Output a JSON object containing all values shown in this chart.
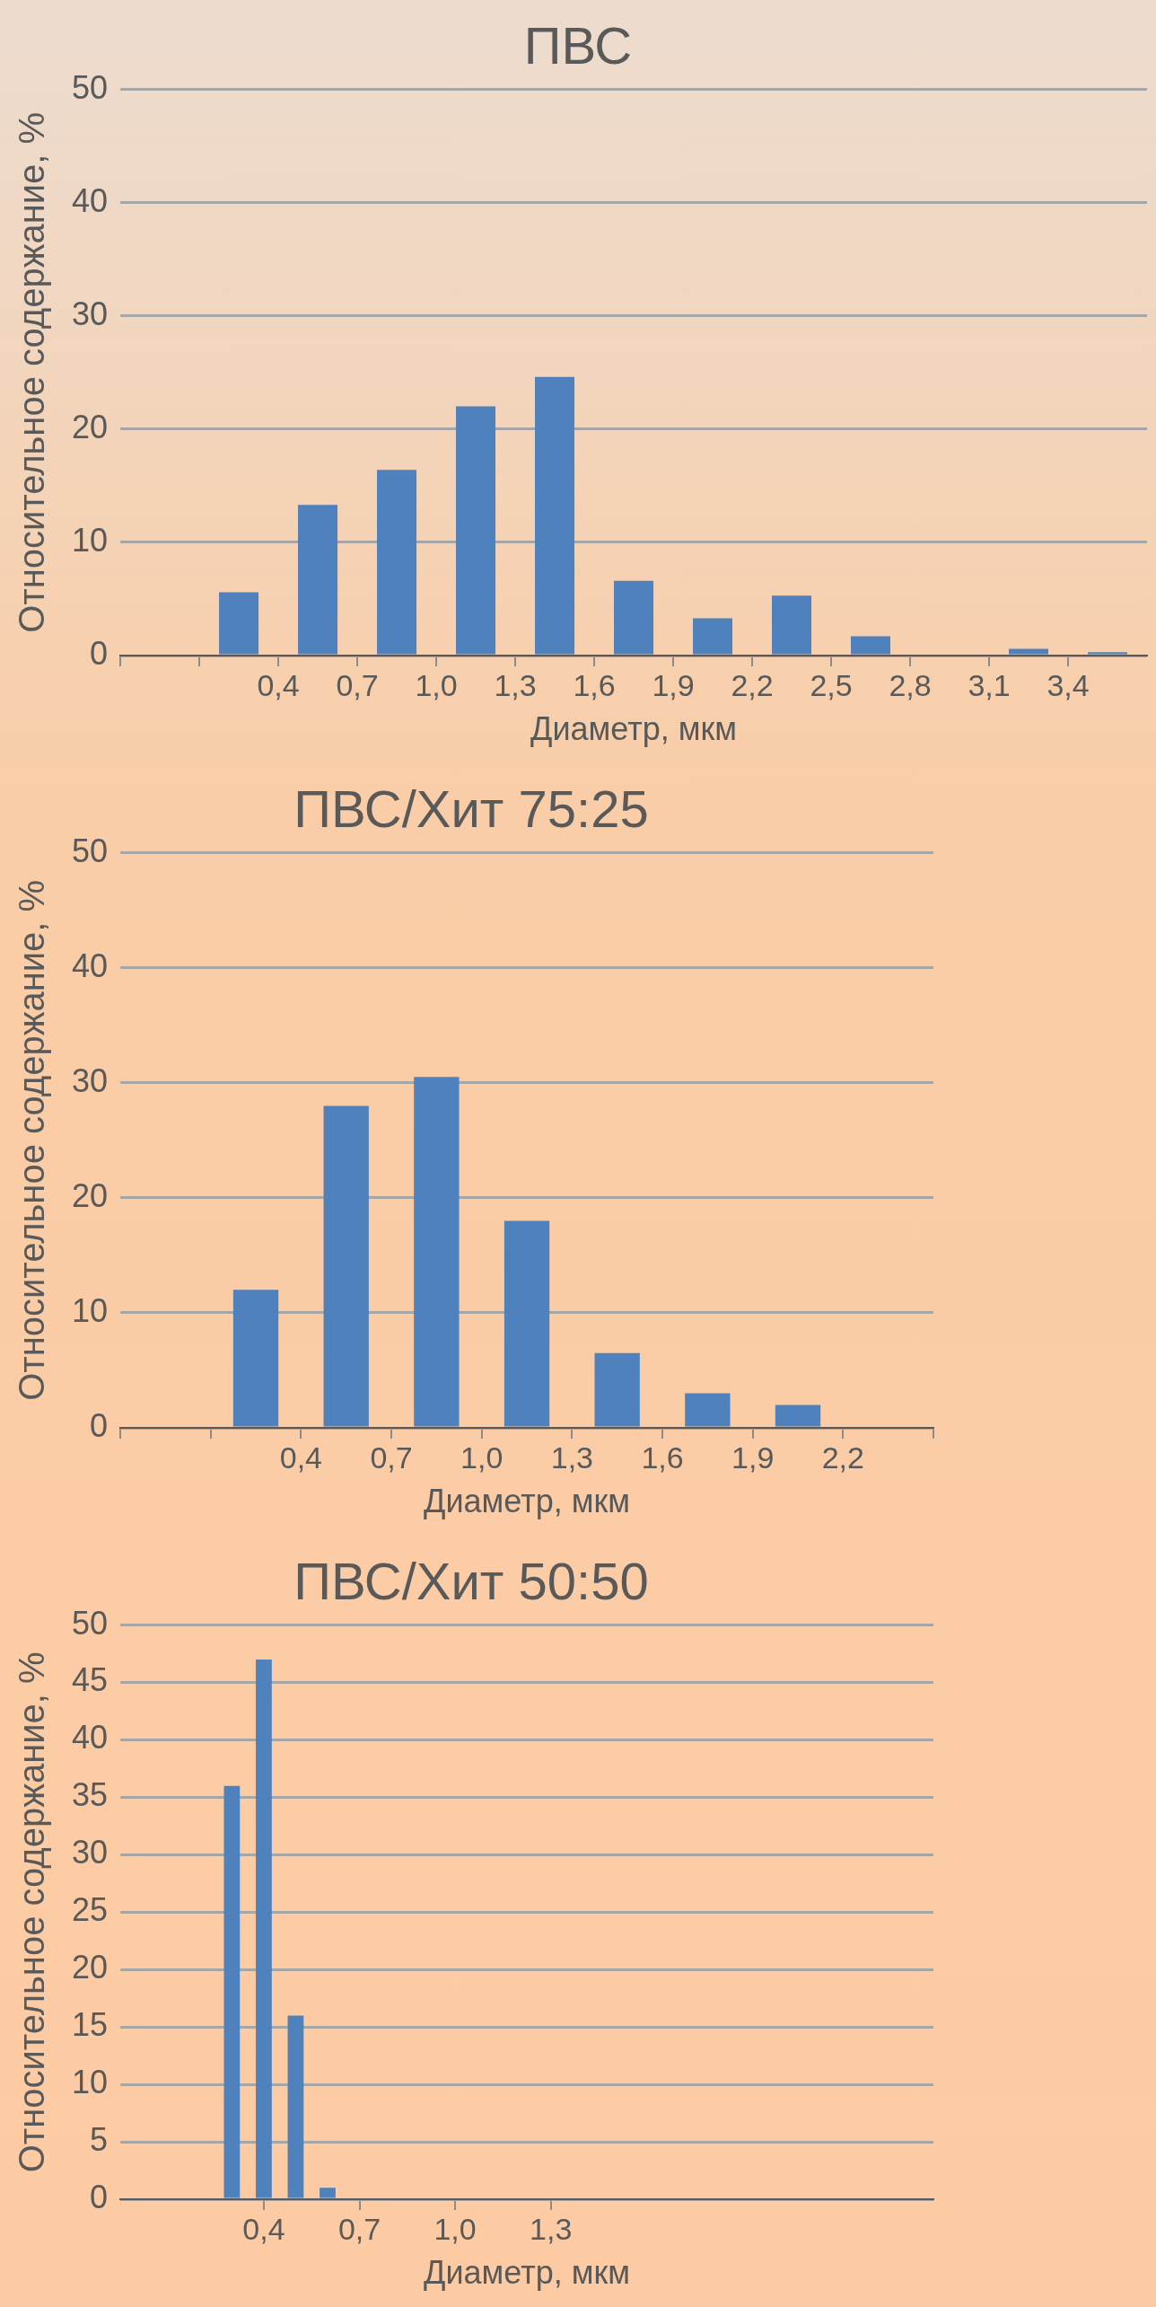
{
  "chart_data": [
    {
      "type": "histogram",
      "title": "ПВС",
      "xlabel": "Диаметр, мкм",
      "ylabel": "Относительное содержание, %",
      "color": "#4f81bd",
      "bins": [
        0.1,
        0.4,
        0.7,
        1.0,
        1.3,
        1.6,
        1.9,
        2.2,
        2.5,
        2.8,
        3.1,
        3.4,
        3.7
      ],
      "values": [
        5.6,
        13.3,
        16.4,
        22.0,
        24.6,
        6.6,
        3.3,
        5.3,
        1.7,
        0,
        0.6,
        0.3
      ],
      "xlim": [
        -0.2,
        3.7
      ],
      "xticks": [
        {
          "value": -0.2,
          "label": null
        },
        {
          "value": 0.1,
          "label": null
        },
        {
          "value": 0.4,
          "label": "0,4"
        },
        {
          "value": 0.7,
          "label": "0,7"
        },
        {
          "value": 1.0,
          "label": "1,0"
        },
        {
          "value": 1.3,
          "label": "1,3"
        },
        {
          "value": 1.6,
          "label": "1,6"
        },
        {
          "value": 1.9,
          "label": "1,9"
        },
        {
          "value": 2.2,
          "label": "2,2"
        },
        {
          "value": 2.5,
          "label": "2,5"
        },
        {
          "value": 2.8,
          "label": "2,8"
        },
        {
          "value": 3.1,
          "label": "3,1"
        },
        {
          "value": 3.4,
          "label": "3,4"
        }
      ],
      "ylim": [
        0,
        50
      ],
      "yticks": [
        0,
        10,
        20,
        30,
        40,
        50
      ],
      "grid": "y",
      "legend": false
    },
    {
      "type": "histogram",
      "title": "ПВС/Хит 75:25",
      "xlabel": "Диаметр, мкм",
      "ylabel": "Относительное содержание, %",
      "color": "#4f81bd",
      "bins": [
        0.1,
        0.4,
        0.7,
        1.0,
        1.3,
        1.6,
        1.9,
        2.2,
        2.5
      ],
      "values": [
        12.0,
        28.0,
        30.5,
        18.0,
        6.5,
        3.0,
        2.0,
        0
      ],
      "xlim": [
        -0.2,
        2.5
      ],
      "xticks": [
        {
          "value": -0.2,
          "label": null
        },
        {
          "value": 0.1,
          "label": null
        },
        {
          "value": 0.4,
          "label": "0,4"
        },
        {
          "value": 0.7,
          "label": "0,7"
        },
        {
          "value": 1.0,
          "label": "1,0"
        },
        {
          "value": 1.3,
          "label": "1,3"
        },
        {
          "value": 1.6,
          "label": "1,6"
        },
        {
          "value": 1.9,
          "label": "1,9"
        },
        {
          "value": 2.2,
          "label": "2,2"
        },
        {
          "value": 2.5,
          "label": null
        }
      ],
      "ylim": [
        0,
        50
      ],
      "yticks": [
        0,
        10,
        20,
        30,
        40,
        50
      ],
      "grid": "y",
      "legend": false
    },
    {
      "type": "histogram",
      "title": "ПВС/Хит 50:50",
      "xlabel": "Диаметр, мкм",
      "ylabel": "Относительное содержание, %",
      "color": "#4f81bd",
      "bins": [
        0.25,
        0.35,
        0.45,
        0.55,
        0.65
      ],
      "values": [
        36,
        47,
        16,
        1
      ],
      "xlim": [
        -0.05,
        2.5
      ],
      "xticks": [
        {
          "value": 0.4,
          "label": "0,4"
        },
        {
          "value": 0.7,
          "label": "0,7"
        },
        {
          "value": 1.0,
          "label": "1,0"
        },
        {
          "value": 1.3,
          "label": "1,3"
        }
      ],
      "ylim": [
        0,
        50
      ],
      "yticks": [
        0,
        5,
        10,
        15,
        20,
        25,
        30,
        35,
        40,
        45,
        50
      ],
      "grid": "y",
      "legend": false
    }
  ]
}
